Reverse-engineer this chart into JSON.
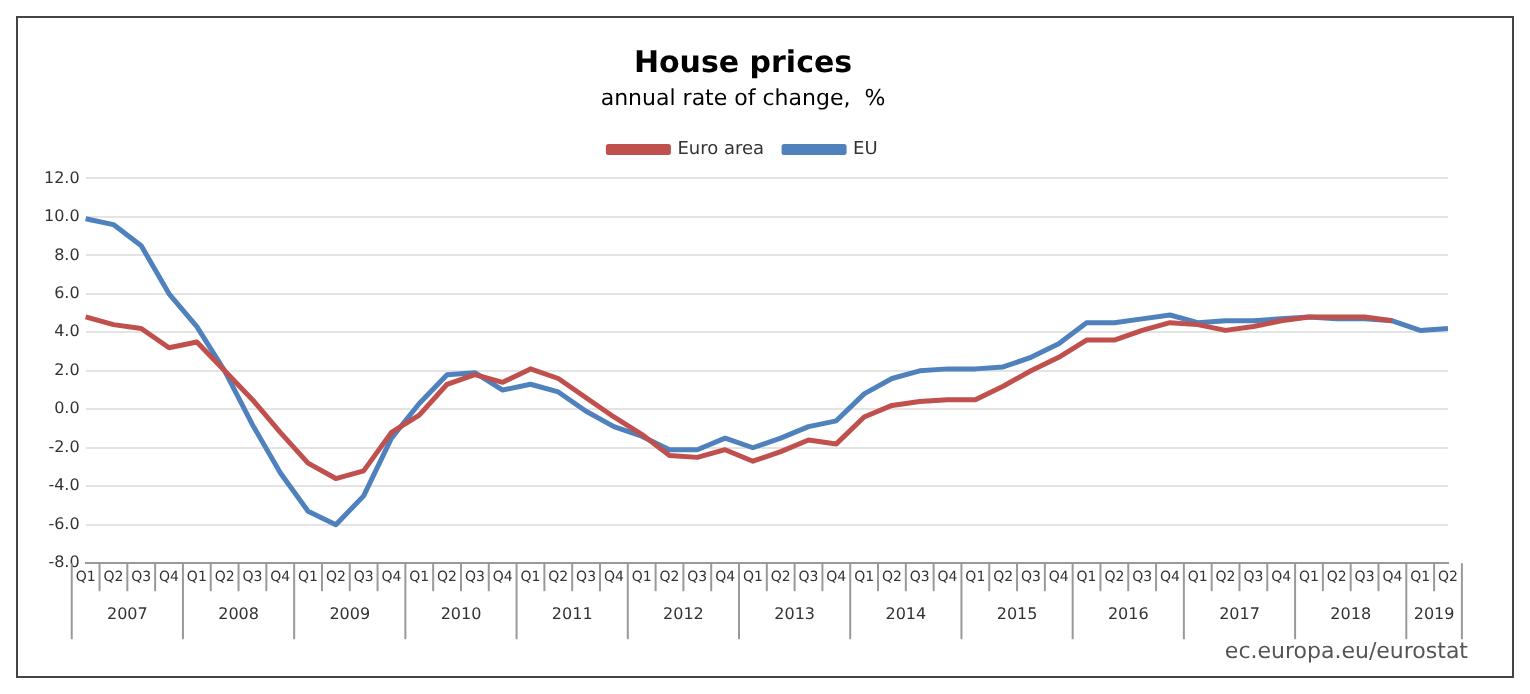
{
  "chart_data": {
    "type": "line",
    "title": "House prices",
    "subtitle": "annual rate of change,  %",
    "categories": [
      "Q1",
      "Q2",
      "Q3",
      "Q4",
      "Q1",
      "Q2",
      "Q3",
      "Q4",
      "Q1",
      "Q2",
      "Q3",
      "Q4",
      "Q1",
      "Q2",
      "Q3",
      "Q4",
      "Q1",
      "Q2",
      "Q3",
      "Q4",
      "Q1",
      "Q2",
      "Q3",
      "Q4",
      "Q1",
      "Q2",
      "Q3",
      "Q4",
      "Q1",
      "Q2",
      "Q3",
      "Q4",
      "Q1",
      "Q2",
      "Q3",
      "Q4",
      "Q1",
      "Q2",
      "Q3",
      "Q4",
      "Q1",
      "Q2",
      "Q3",
      "Q4",
      "Q1",
      "Q2",
      "Q3",
      "Q4",
      "Q1",
      "Q2"
    ],
    "series": [
      {
        "name": "Euro area",
        "color": "#c0504d",
        "values": [
          4.8,
          4.4,
          4.2,
          3.2,
          3.5,
          2.0,
          0.5,
          -1.2,
          -2.8,
          -3.6,
          -3.2,
          -1.2,
          -0.3,
          1.3,
          1.8,
          1.4,
          2.1,
          1.6,
          0.6,
          -0.4,
          -1.3,
          -2.4,
          -2.5,
          -2.1,
          -2.7,
          -2.2,
          -1.6,
          -1.8,
          -0.4,
          0.2,
          0.4,
          0.5,
          0.5,
          1.2,
          2.0,
          2.7,
          3.6,
          3.6,
          4.1,
          4.5,
          4.4,
          4.1,
          4.3,
          4.6,
          4.8,
          4.8,
          4.8,
          4.6,
          null,
          null
        ]
      },
      {
        "name": "EU",
        "color": "#4f81bd",
        "values": [
          9.9,
          9.6,
          8.5,
          6.0,
          4.3,
          2.0,
          -0.8,
          -3.3,
          -5.3,
          -6.0,
          -4.5,
          -1.5,
          0.3,
          1.8,
          1.9,
          1.0,
          1.3,
          0.9,
          -0.1,
          -0.9,
          -1.4,
          -2.1,
          -2.1,
          -1.5,
          -2.0,
          -1.5,
          -0.9,
          -0.6,
          0.8,
          1.6,
          2.0,
          2.1,
          2.1,
          2.2,
          2.7,
          3.4,
          4.5,
          4.5,
          4.7,
          4.9,
          4.5,
          4.6,
          4.6,
          4.7,
          4.8,
          4.7,
          4.7,
          4.6,
          4.1,
          4.2
        ]
      }
    ],
    "ylim": [
      -8,
      12
    ],
    "yticks": [
      {
        "value": -8,
        "label": "-8.0"
      },
      {
        "value": -6,
        "label": "-6.0"
      },
      {
        "value": -4,
        "label": "-4.0"
      },
      {
        "value": -2,
        "label": "-2.0"
      },
      {
        "value": 0,
        "label": "0.0"
      },
      {
        "value": 2,
        "label": "2.0"
      },
      {
        "value": 4,
        "label": "4.0"
      },
      {
        "value": 6,
        "label": "6.0"
      },
      {
        "value": 8,
        "label": "8.0"
      },
      {
        "value": 10,
        "label": "10.0"
      },
      {
        "value": 12,
        "label": "12.0"
      }
    ],
    "grid": "y",
    "legend": "top",
    "marker": "none",
    "line_style": "solid",
    "annotations": [
      "2007",
      "2008",
      "2009",
      "2010",
      "2011",
      "2012",
      "2013",
      "2014",
      "2015",
      "2016",
      "2017",
      "2018",
      "2019",
      "ec.europa.eu/eurostat"
    ]
  }
}
